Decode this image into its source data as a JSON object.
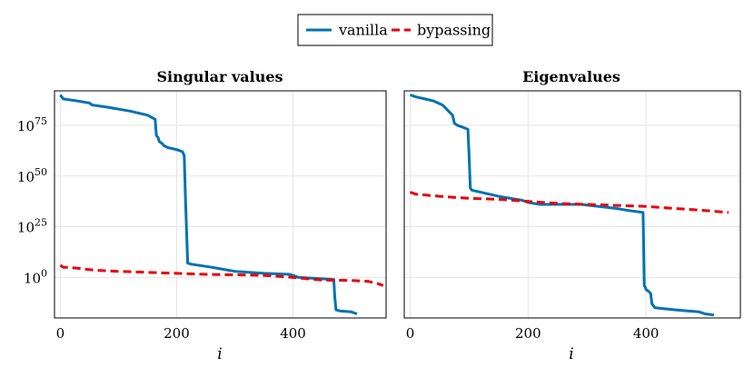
{
  "legend": {
    "entries": [
      {
        "label": "vanilla",
        "color": "#0072b2",
        "style": "solid"
      },
      {
        "label": "bypassing",
        "color": "#e8000b",
        "style": "dashed"
      }
    ]
  },
  "chart_data": [
    {
      "type": "line",
      "title": "Singular values",
      "xlabel": "i",
      "ylabel": "",
      "y_scale": "log10",
      "xlim": [
        -10,
        560
      ],
      "ylim": [
        -20,
        92
      ],
      "x_ticks": [
        0,
        200,
        400
      ],
      "x_tick_labels": [
        "0",
        "200",
        "400"
      ],
      "y_ticks": [
        0,
        25,
        50,
        75
      ],
      "y_tick_labels": [
        {
          "base": "10",
          "exp": "0"
        },
        {
          "base": "10",
          "exp": "25"
        },
        {
          "base": "10",
          "exp": "50"
        },
        {
          "base": "10",
          "exp": "75"
        }
      ],
      "grid": true,
      "series": [
        {
          "name": "vanilla",
          "color": "#0072b2",
          "style": "solid",
          "x": [
            0,
            5,
            30,
            50,
            55,
            80,
            120,
            150,
            163,
            165,
            168,
            170,
            175,
            178,
            185,
            200,
            210,
            213,
            215,
            219,
            225,
            260,
            300,
            350,
            395,
            410,
            470,
            472,
            474,
            480,
            500,
            510
          ],
          "y": [
            90,
            88,
            87,
            86,
            85,
            84,
            82,
            80,
            78,
            70,
            69,
            67,
            66,
            65,
            64,
            63,
            62,
            60,
            40,
            7,
            6.5,
            5,
            3,
            2,
            1.5,
            0,
            -1,
            -10,
            -16,
            -16.5,
            -17,
            -18
          ]
        },
        {
          "name": "bypassing",
          "color": "#e8000b",
          "style": "dashed",
          "x": [
            0,
            5,
            10,
            30,
            60,
            100,
            150,
            200,
            250,
            300,
            350,
            400,
            450,
            500,
            530,
            545,
            555
          ],
          "y": [
            6,
            5,
            5,
            4.5,
            3.5,
            3,
            2.5,
            2,
            1.5,
            1.3,
            1,
            0,
            -1.3,
            -1.5,
            -2,
            -3,
            -4
          ]
        }
      ]
    },
    {
      "type": "line",
      "title": "Eigenvalues",
      "xlabel": "i",
      "ylabel": "",
      "y_scale": "log10",
      "xlim": [
        -10,
        560
      ],
      "ylim": [
        -20,
        92
      ],
      "x_ticks": [
        0,
        200,
        400
      ],
      "x_tick_labels": [
        "0",
        "200",
        "400"
      ],
      "grid": true,
      "series": [
        {
          "name": "vanilla",
          "color": "#0072b2",
          "style": "solid",
          "x": [
            0,
            10,
            25,
            40,
            55,
            65,
            72,
            75,
            80,
            90,
            98,
            100,
            102,
            105,
            150,
            190,
            200,
            220,
            260,
            290,
            320,
            350,
            370,
            395,
            397,
            399,
            400,
            405,
            408,
            410,
            415,
            450,
            490,
            500,
            515
          ],
          "y": [
            90,
            89,
            88,
            87,
            85,
            82,
            80,
            76,
            75,
            74,
            73,
            60,
            44,
            43,
            40,
            38,
            37,
            36,
            36,
            36,
            35,
            34,
            33,
            32,
            -4,
            -5,
            -6,
            -7,
            -8,
            -13,
            -15,
            -16,
            -17,
            -18,
            -18.5
          ]
        },
        {
          "name": "bypassing",
          "color": "#e8000b",
          "style": "dashed",
          "x": [
            0,
            10,
            50,
            100,
            150,
            200,
            250,
            300,
            350,
            400,
            450,
            500,
            540
          ],
          "y": [
            42,
            41,
            40,
            39,
            38.5,
            37.5,
            36.5,
            36,
            35.5,
            35,
            34,
            33,
            32
          ]
        }
      ]
    }
  ]
}
